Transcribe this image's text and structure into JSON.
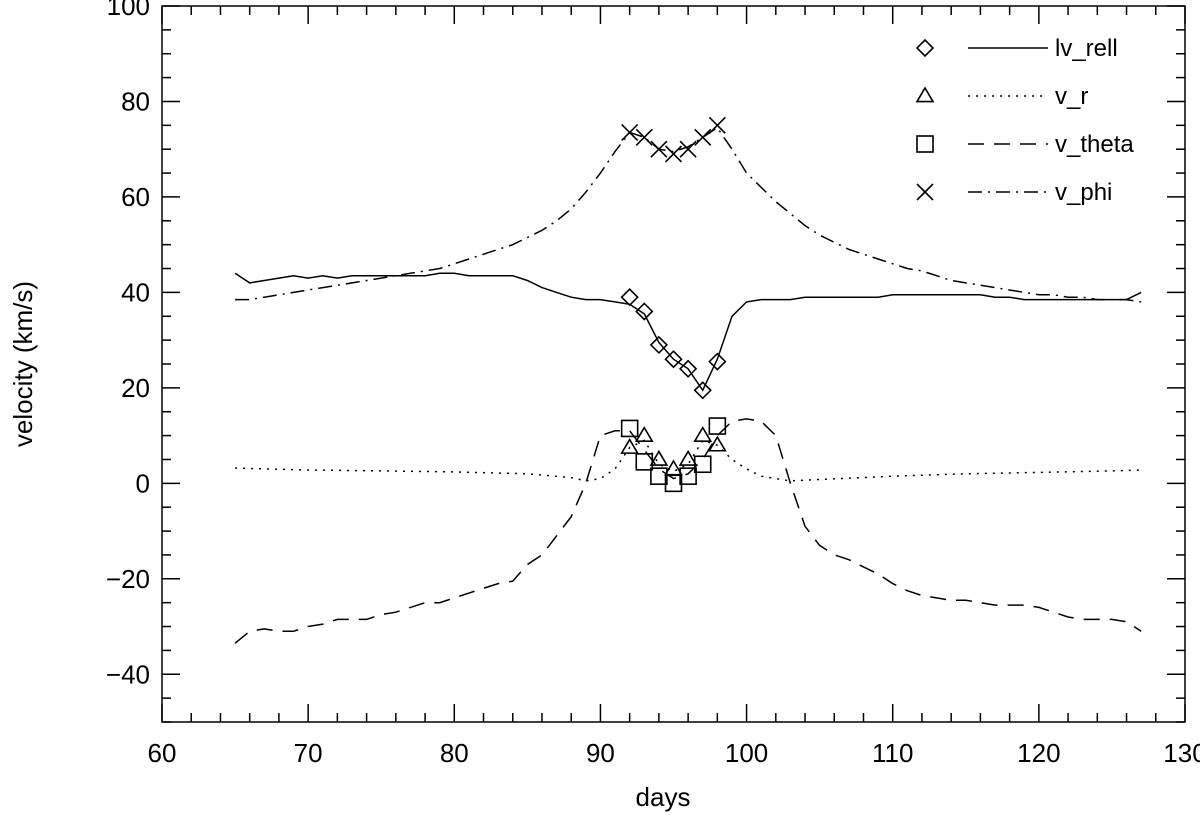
{
  "chart_data": {
    "type": "line",
    "xlabel": "days",
    "ylabel": "velocity (km/s)",
    "xlim": [
      60,
      130
    ],
    "ylim": [
      -50,
      100
    ],
    "xticks": [
      60,
      70,
      80,
      90,
      100,
      110,
      120,
      130
    ],
    "yticks": [
      -40,
      -20,
      0,
      20,
      40,
      60,
      80,
      100
    ],
    "legend_position": "top-right",
    "series": [
      {
        "name": "lv_rell",
        "line_style": "solid",
        "marker": "diamond",
        "x": [
          65,
          66,
          67,
          68,
          69,
          70,
          71,
          72,
          73,
          74,
          75,
          76,
          77,
          78,
          79,
          80,
          81,
          82,
          83,
          84,
          85,
          86,
          87,
          88,
          89,
          90,
          91,
          92,
          93,
          94,
          95,
          96,
          97,
          98,
          99,
          100,
          101,
          102,
          103,
          104,
          105,
          106,
          107,
          108,
          109,
          110,
          111,
          112,
          113,
          114,
          115,
          116,
          117,
          118,
          119,
          120,
          121,
          122,
          123,
          124,
          125,
          126,
          127
        ],
        "y": [
          44,
          42,
          42.5,
          43,
          43.5,
          43,
          43.5,
          43,
          43.5,
          43.5,
          43.5,
          43.5,
          43.5,
          43.5,
          44,
          44,
          43.5,
          43.5,
          43.5,
          43.5,
          42.5,
          41,
          40,
          39,
          38.5,
          38.5,
          38,
          37.5,
          35.5,
          29.5,
          26,
          24,
          19.5,
          26,
          35,
          38,
          38.5,
          38.5,
          38.5,
          39,
          39,
          39,
          39,
          39,
          39,
          39.5,
          39.5,
          39.5,
          39.5,
          39.5,
          39.5,
          39.5,
          39,
          39,
          38.5,
          38.5,
          38.5,
          38.5,
          38.5,
          38.5,
          38.5,
          38.5,
          40
        ],
        "marker_x": [
          92,
          93,
          94,
          95,
          96,
          97,
          98
        ],
        "marker_y": [
          39,
          36,
          29,
          26,
          24,
          19.5,
          25.5
        ]
      },
      {
        "name": "v_r",
        "line_style": "dotted",
        "marker": "triangle",
        "x": [
          65,
          70,
          75,
          80,
          85,
          88,
          89,
          90,
          91,
          92,
          93,
          94,
          95,
          96,
          97,
          98,
          99,
          100,
          101,
          102,
          103,
          105,
          110,
          115,
          120,
          125,
          127
        ],
        "y": [
          3.2,
          2.8,
          2.6,
          2.4,
          2,
          1.2,
          0.5,
          1,
          3,
          7.5,
          9,
          4,
          2.5,
          4,
          9,
          8,
          5,
          3,
          1.5,
          1,
          0.5,
          0.8,
          1.5,
          2,
          2.3,
          2.6,
          2.8
        ],
        "marker_x": [
          92,
          93,
          94,
          95,
          96,
          97,
          98
        ],
        "marker_y": [
          7.5,
          10,
          5,
          3,
          5,
          10,
          8
        ]
      },
      {
        "name": "v_theta",
        "line_style": "dashed",
        "marker": "square",
        "x": [
          65,
          66,
          67,
          68,
          69,
          70,
          71,
          72,
          73,
          74,
          75,
          76,
          77,
          78,
          79,
          80,
          81,
          82,
          83,
          84,
          85,
          86,
          87,
          88,
          89,
          90,
          91,
          92,
          93,
          94,
          95,
          96,
          97,
          98,
          99,
          100,
          101,
          102,
          103,
          104,
          105,
          106,
          107,
          108,
          109,
          110,
          111,
          112,
          113,
          114,
          115,
          116,
          117,
          118,
          119,
          120,
          121,
          122,
          123,
          124,
          125,
          126,
          127
        ],
        "y": [
          -33.5,
          -31,
          -30.5,
          -31,
          -31,
          -30,
          -29.5,
          -28.5,
          -28.5,
          -28.5,
          -27.5,
          -27,
          -26,
          -25,
          -25,
          -24,
          -23,
          -22,
          -21,
          -20.5,
          -17,
          -15,
          -11,
          -7,
          0,
          10,
          11,
          11,
          7,
          3,
          1,
          2,
          5,
          10,
          13,
          13.5,
          13,
          10,
          0,
          -9,
          -13,
          -15,
          -16,
          -17.5,
          -19,
          -21,
          -22.5,
          -23.5,
          -24,
          -24.5,
          -24.5,
          -25,
          -25.5,
          -25.5,
          -25.5,
          -26,
          -27,
          -28,
          -28.5,
          -28.5,
          -28.5,
          -29,
          -31
        ],
        "marker_x": [
          92,
          93,
          94,
          95,
          96,
          97,
          98
        ],
        "marker_y": [
          11.5,
          4.5,
          1.5,
          0,
          1.5,
          4,
          12
        ]
      },
      {
        "name": "v_phi",
        "line_style": "dashdot",
        "marker": "cross",
        "x": [
          65,
          66,
          67,
          68,
          69,
          70,
          71,
          72,
          73,
          74,
          75,
          76,
          77,
          78,
          79,
          80,
          81,
          82,
          83,
          84,
          85,
          86,
          87,
          88,
          89,
          90,
          91,
          92,
          93,
          94,
          95,
          96,
          97,
          98,
          99,
          100,
          101,
          102,
          103,
          104,
          105,
          106,
          107,
          108,
          109,
          110,
          111,
          112,
          113,
          114,
          115,
          116,
          117,
          118,
          119,
          120,
          121,
          122,
          123,
          124,
          125,
          126,
          127
        ],
        "y": [
          38.5,
          38.5,
          39,
          39.5,
          40,
          40.5,
          41,
          41.5,
          42,
          42.5,
          43,
          43.5,
          44,
          44.5,
          45,
          46,
          47,
          48,
          49,
          50,
          51.5,
          53,
          55,
          57.5,
          61,
          65,
          69.5,
          73.5,
          72.5,
          70,
          69.5,
          70.5,
          72.5,
          74.5,
          70,
          65,
          62,
          59,
          56.5,
          54,
          52,
          50.5,
          49,
          48,
          47,
          46,
          45,
          44.5,
          43.5,
          42.5,
          42,
          41.5,
          41,
          40.5,
          40,
          39.5,
          39.5,
          39,
          39,
          38.5,
          38.5,
          38.5,
          38
        ],
        "marker_x": [
          92,
          93,
          94,
          95,
          96,
          97,
          98
        ],
        "marker_y": [
          73.5,
          72.5,
          70,
          69,
          70,
          72.5,
          75
        ]
      }
    ]
  }
}
